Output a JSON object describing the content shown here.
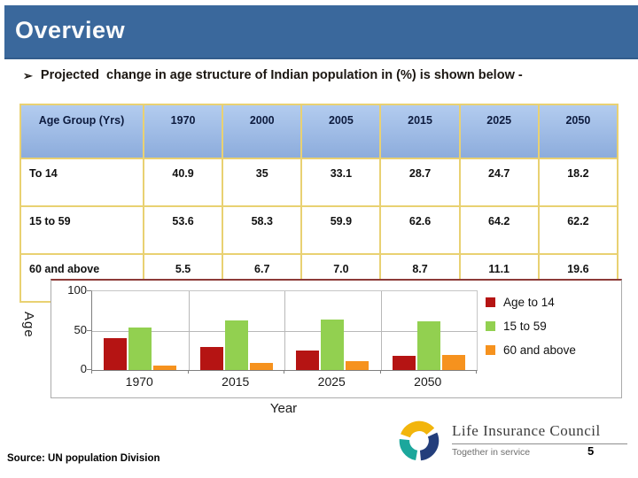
{
  "slide": {
    "title": "Overview",
    "bullet_glyph": "➢",
    "bullet": "Projected  change in age structure of Indian population in (%) is shown below -",
    "source": "Source: UN population Division",
    "page_number": "5"
  },
  "table": {
    "headers": [
      "Age Group (Yrs)",
      "1970",
      "2000",
      "2005",
      "2015",
      "2025",
      "2050"
    ],
    "rows": [
      [
        "To 14",
        "40.9",
        "35",
        "33.1",
        "28.7",
        "24.7",
        "18.2"
      ],
      [
        "15 to 59",
        "53.6",
        "58.3",
        "59.9",
        "62.6",
        "64.2",
        "62.2"
      ],
      [
        "60 and above",
        "5.5",
        "6.7",
        "7.0",
        "8.7",
        "11.1",
        "19.6"
      ]
    ]
  },
  "chart_data": {
    "type": "bar",
    "categories": [
      "1970",
      "2015",
      "2025",
      "2050"
    ],
    "series": [
      {
        "name": "Age to 14",
        "color": "#B51413",
        "values": [
          40.9,
          28.7,
          24.7,
          18.2
        ]
      },
      {
        "name": "15 to 59",
        "color": "#92D050",
        "values": [
          53.6,
          62.6,
          64.2,
          62.2
        ]
      },
      {
        "name": "60 and above",
        "color": "#F6921E",
        "values": [
          5.5,
          8.7,
          11.1,
          19.6
        ]
      }
    ],
    "xlabel": "Year",
    "ylabel": "Age",
    "ylim": [
      0,
      100
    ],
    "yticks": [
      0,
      50,
      100
    ],
    "grid": true,
    "legend_position": "right"
  },
  "logo": {
    "name": "Life Insurance Council",
    "tagline": "Together in service",
    "mark": "swirl-logo",
    "mark_colors": {
      "gold": "#F2B50C",
      "navy": "#233E7B",
      "teal": "#1CA79C"
    }
  },
  "colors": {
    "header_bar": "#3A689C",
    "table_border": "#E9D172",
    "table_header_fill": "#9FBCE5",
    "chart_top_rule": "#8C3A38"
  }
}
